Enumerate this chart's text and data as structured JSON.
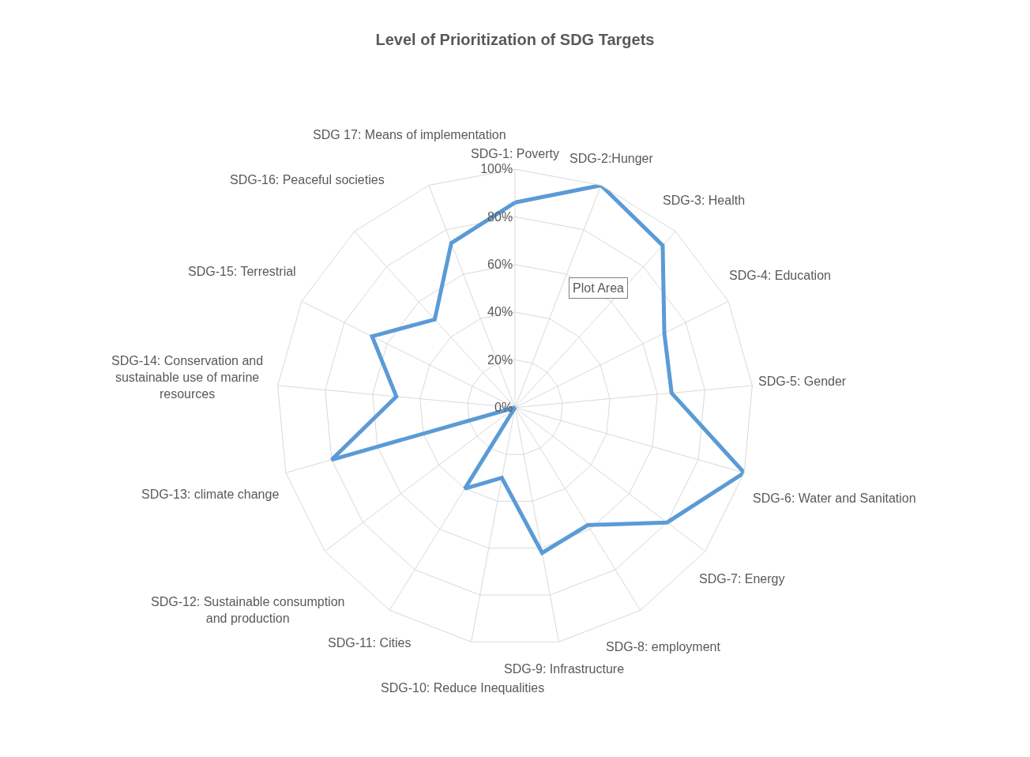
{
  "chart_data": {
    "type": "radar",
    "title": "Level of Prioritization of SDG Targets",
    "categories": [
      "SDG-1: Poverty",
      "SDG-2:Hunger",
      "SDG-3: Health",
      "SDG-4: Education",
      "SDG-5: Gender",
      "SDG-6: Water and Sanitation",
      "SDG-7: Energy",
      "SDG-8: employment",
      "SDG-9: Infrastructure",
      "SDG-10: Reduce Inequalities",
      "SDG-11: Cities",
      "SDG-12: Sustainable consumption and production",
      "SDG-13: climate change",
      "SDG-14: Conservation and sustainable use of marine resources",
      "SDG-15: Terrestrial",
      "SDG-16: Peaceful societies",
      "SDG 17: Means of implementation"
    ],
    "series": [
      {
        "color": "#5b9bd5",
        "values": [
          86,
          100,
          92,
          70,
          66,
          100,
          80,
          58,
          62,
          30,
          40,
          0,
          80,
          50,
          67,
          50,
          74
        ]
      }
    ],
    "ylim": [
      0,
      100
    ],
    "yticks": [
      {
        "value": 0,
        "label": "0%"
      },
      {
        "value": 20,
        "label": "20%"
      },
      {
        "value": 40,
        "label": "40%"
      },
      {
        "value": 60,
        "label": "60%"
      },
      {
        "value": 80,
        "label": "80%"
      },
      {
        "value": 100,
        "label": "100%"
      }
    ],
    "grid": true,
    "marker": "none",
    "line_style": "solid",
    "annotations": [
      "Plot Area"
    ]
  }
}
